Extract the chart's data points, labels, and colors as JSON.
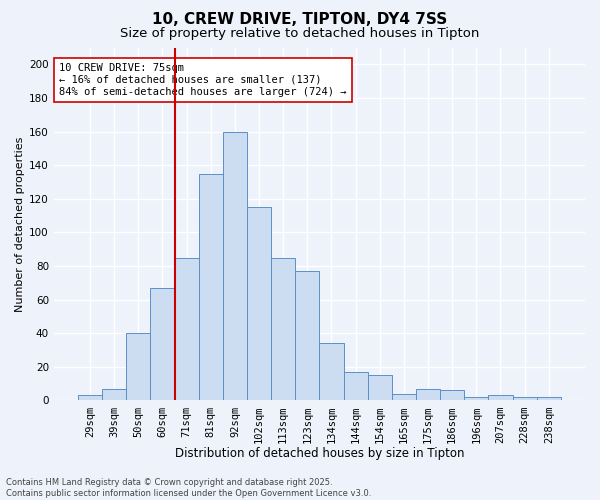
{
  "title1": "10, CREW DRIVE, TIPTON, DY4 7SS",
  "title2": "Size of property relative to detached houses in Tipton",
  "xlabel": "Distribution of detached houses by size in Tipton",
  "ylabel": "Number of detached properties",
  "categories": [
    "29sqm",
    "39sqm",
    "50sqm",
    "60sqm",
    "71sqm",
    "81sqm",
    "92sqm",
    "102sqm",
    "113sqm",
    "123sqm",
    "134sqm",
    "144sqm",
    "154sqm",
    "165sqm",
    "175sqm",
    "186sqm",
    "196sqm",
    "207sqm",
    "228sqm",
    "238sqm"
  ],
  "values": [
    3,
    7,
    40,
    67,
    85,
    135,
    160,
    115,
    85,
    77,
    34,
    17,
    15,
    4,
    7,
    6,
    2,
    3,
    2,
    2
  ],
  "bar_color": "#ccddf2",
  "bar_edge_color": "#5b8fc9",
  "vline_index": 4,
  "vline_color": "#cc0000",
  "annotation_text": "10 CREW DRIVE: 75sqm\n← 16% of detached houses are smaller (137)\n84% of semi-detached houses are larger (724) →",
  "annotation_box_color": "#ffffff",
  "annotation_box_edge": "#cc0000",
  "annotation_fontsize": 7.5,
  "footer_line1": "Contains HM Land Registry data © Crown copyright and database right 2025.",
  "footer_line2": "Contains public sector information licensed under the Open Government Licence v3.0.",
  "background_color": "#eef2fa",
  "grid_color": "#ffffff",
  "ylim": [
    0,
    210
  ],
  "yticks": [
    0,
    20,
    40,
    60,
    80,
    100,
    120,
    140,
    160,
    180,
    200
  ],
  "title1_fontsize": 11,
  "title2_fontsize": 9.5,
  "xlabel_fontsize": 8.5,
  "ylabel_fontsize": 8,
  "tick_fontsize": 7.5,
  "footer_fontsize": 6
}
